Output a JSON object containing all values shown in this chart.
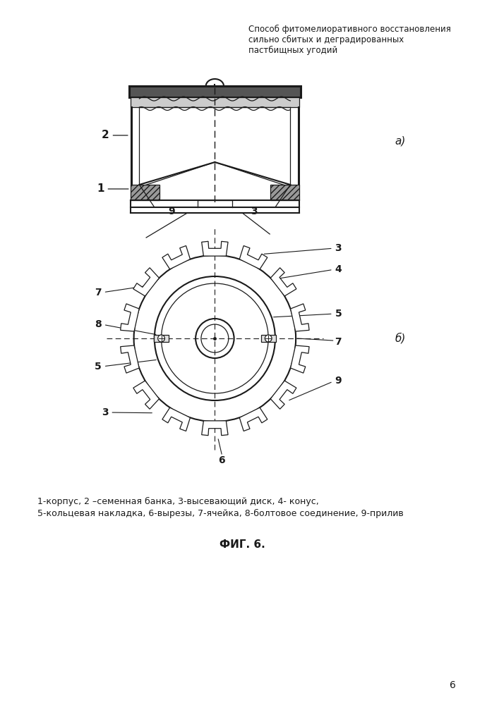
{
  "title_text": "Способ фитомелиоративного восстановления\nсильно сбитых и деградированных\nпастбищных угодий",
  "caption_line1": "1-корпус, 2 –семенная банка, 3-высевающий диск, 4- конус,",
  "caption_line2": "5-кольцевая накладка, 6-вырезы, 7-ячейка, 8-болтовое соединение, 9-прилив",
  "fig_label": "ФИГ. 6.",
  "page_num": "6",
  "label_a": "а)",
  "label_b": "б)",
  "bg_color": "#ffffff",
  "line_color": "#1a1a1a"
}
